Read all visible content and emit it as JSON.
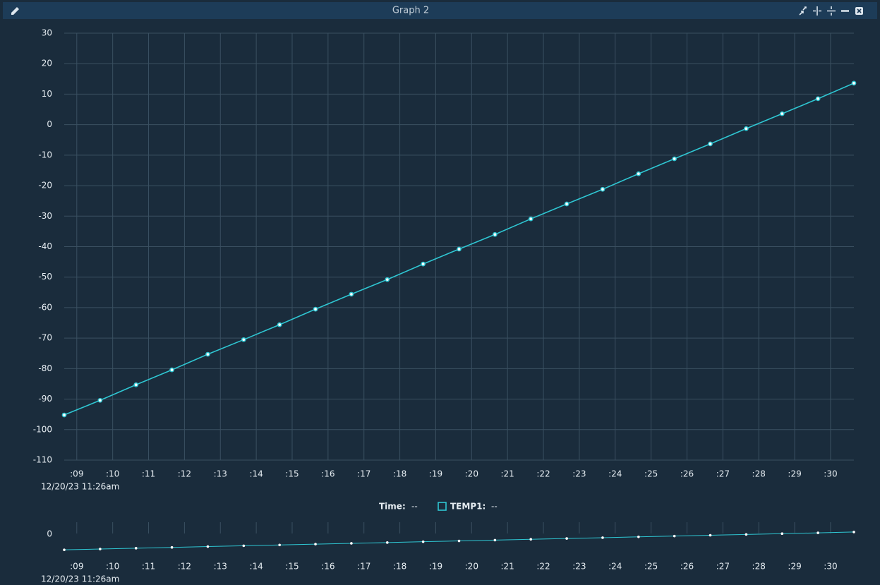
{
  "window": {
    "title": "Graph 2"
  },
  "chart_data": {
    "type": "line",
    "x": [
      8.65,
      9.65,
      10.65,
      11.65,
      12.65,
      13.65,
      14.65,
      15.65,
      16.65,
      17.65,
      18.65,
      19.65,
      20.65,
      21.65,
      22.65,
      23.65,
      24.65,
      25.65,
      26.65,
      27.65,
      28.65,
      29.65,
      30.65
    ],
    "series": [
      {
        "name": "TEMP1:",
        "color": "#2fc6d2",
        "values": [
          -95.2,
          -90.4,
          -85.3,
          -80.4,
          -75.3,
          -70.5,
          -65.6,
          -60.5,
          -55.6,
          -50.8,
          -45.7,
          -40.8,
          -36.0,
          -30.9,
          -26.0,
          -21.2,
          -16.1,
          -11.2,
          -6.3,
          -1.3,
          3.6,
          8.5,
          13.6
        ]
      }
    ],
    "xlim": [
      8.65,
      30.65
    ],
    "xticks": [
      {
        "value": 9,
        "label": ":09"
      },
      {
        "value": 10,
        "label": ":10"
      },
      {
        "value": 11,
        "label": ":11"
      },
      {
        "value": 12,
        "label": ":12"
      },
      {
        "value": 13,
        "label": ":13"
      },
      {
        "value": 14,
        "label": ":14"
      },
      {
        "value": 15,
        "label": ":15"
      },
      {
        "value": 16,
        "label": ":16"
      },
      {
        "value": 17,
        "label": ":17"
      },
      {
        "value": 18,
        "label": ":18"
      },
      {
        "value": 19,
        "label": ":19"
      },
      {
        "value": 20,
        "label": ":20"
      },
      {
        "value": 21,
        "label": ":21"
      },
      {
        "value": 22,
        "label": ":22"
      },
      {
        "value": 23,
        "label": ":23"
      },
      {
        "value": 24,
        "label": ":24"
      },
      {
        "value": 25,
        "label": ":25"
      },
      {
        "value": 26,
        "label": ":26"
      },
      {
        "value": 27,
        "label": ":27"
      },
      {
        "value": 28,
        "label": ":28"
      },
      {
        "value": 29,
        "label": ":29"
      },
      {
        "value": 30,
        "label": ":30"
      }
    ],
    "x_date_label": "12/20/23 11:26am",
    "ylim": [
      -110,
      30
    ],
    "yticks": [
      -110,
      -100,
      -90,
      -80,
      -70,
      -60,
      -50,
      -40,
      -30,
      -20,
      -10,
      0,
      10,
      20,
      30
    ],
    "grid": true,
    "legend": {
      "time_label": "Time:",
      "time_value": "--",
      "series_value": "--"
    },
    "overview": {
      "ylim": [
        -142,
        39
      ],
      "yticks": [
        0
      ]
    }
  }
}
